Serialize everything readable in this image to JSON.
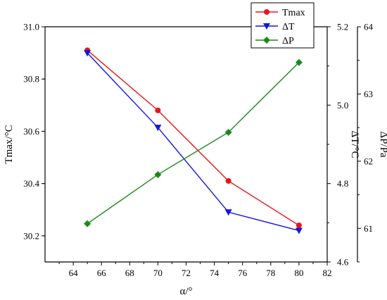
{
  "chart_data": {
    "type": "line",
    "x": [
      65,
      70,
      75,
      80
    ],
    "xlabel": "α/°",
    "xlim": [
      62,
      82
    ],
    "xticks": [
      64,
      66,
      68,
      70,
      72,
      74,
      76,
      78,
      80,
      82
    ],
    "axes": [
      {
        "id": "left",
        "label": "Tmax/°C",
        "lim": [
          30.1,
          31.0
        ],
        "ticks": [
          30.2,
          30.4,
          30.6,
          30.8,
          31.0
        ],
        "tick_labels": [
          "30.2",
          "30.4",
          "30.6",
          "30.8",
          "31.0"
        ]
      },
      {
        "id": "right1",
        "label": "ΔT/°C",
        "lim": [
          4.6,
          5.2
        ],
        "ticks": [
          4.6,
          4.8,
          5.0,
          5.2
        ],
        "tick_labels": [
          "4.6",
          "4.8",
          "5.0",
          "5.2"
        ]
      },
      {
        "id": "right2",
        "label": "ΔP/Pa",
        "lim": [
          60.5,
          64
        ],
        "ticks": [
          61,
          62,
          63,
          64
        ],
        "tick_labels": [
          "61",
          "62",
          "63",
          "64"
        ]
      }
    ],
    "series": [
      {
        "name": "Tmax",
        "axis": "left",
        "values": [
          30.91,
          30.68,
          30.41,
          30.24
        ],
        "color": "#e8151b",
        "marker": "circle"
      },
      {
        "name": "ΔT",
        "axis": "right1",
        "values": [
          5.133,
          4.943,
          4.727,
          4.68
        ],
        "color": "#1515e0",
        "marker": "triangle-down"
      },
      {
        "name": "ΔP",
        "axis": "right2",
        "values": [
          61.07,
          61.8,
          62.43,
          63.47
        ],
        "color": "#1a8a1a",
        "marker": "diamond"
      }
    ],
    "legend_position": "top-right",
    "grid": false
  }
}
